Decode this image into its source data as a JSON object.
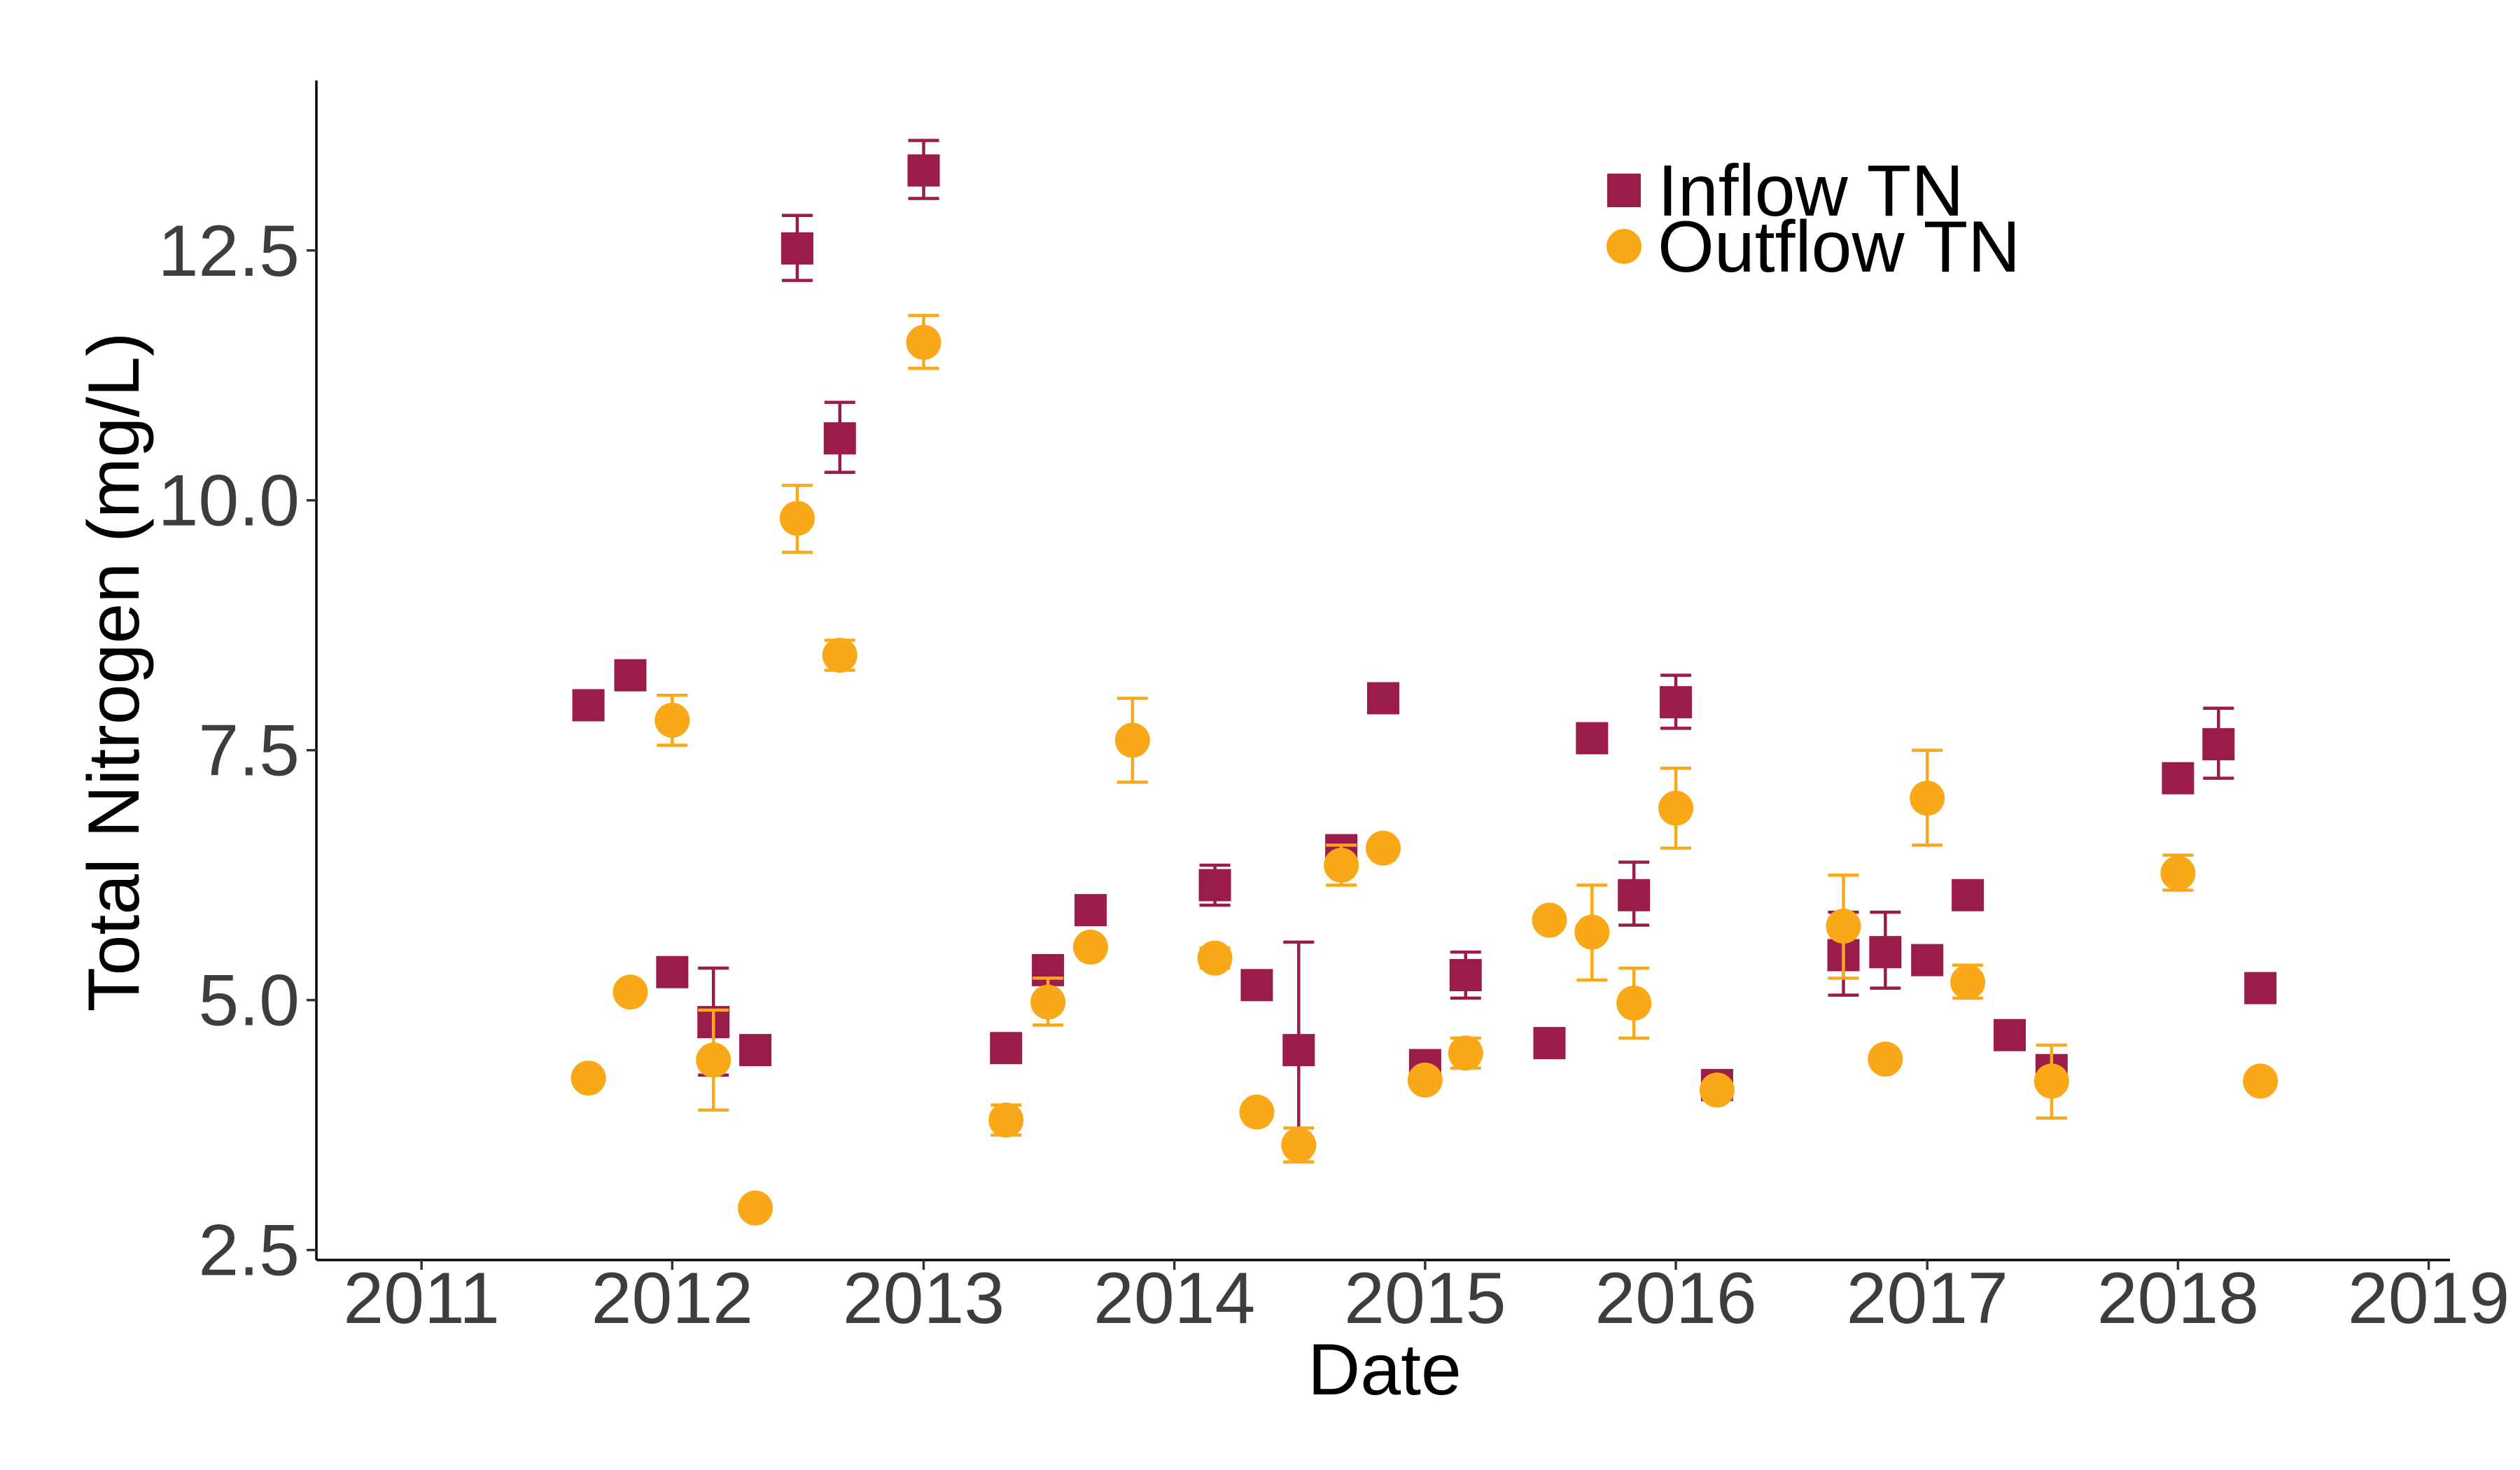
{
  "chart_data": {
    "type": "scatter",
    "title": "",
    "xlabel": "Date",
    "ylabel": "Total Nitrogen (mg/L)",
    "xlim": [
      "2010-08-01",
      "2019-02-01"
    ],
    "ylim": [
      2.4,
      14.2
    ],
    "x_ticks": [
      "2011",
      "2012",
      "2013",
      "2014",
      "2015",
      "2016",
      "2017",
      "2018",
      "2019"
    ],
    "y_ticks": [
      "2.5",
      "5.0",
      "7.5",
      "10.0",
      "12.5"
    ],
    "grid": false,
    "legend_position": "top-right",
    "error_bars": true,
    "series": [
      {
        "name": "Inflow TN",
        "marker": "square",
        "color": "#9b1b4b",
        "points": [
          {
            "x": "2011-09-01",
            "y": 7.95,
            "err": [
              7.95,
              7.95
            ]
          },
          {
            "x": "2011-11-01",
            "y": 8.25,
            "err": [
              8.25,
              8.25
            ]
          },
          {
            "x": "2012-01-01",
            "y": 5.28,
            "err": [
              5.28,
              5.28
            ]
          },
          {
            "x": "2012-03-01",
            "y": 4.78,
            "err": [
              4.25,
              5.32
            ]
          },
          {
            "x": "2012-05-01",
            "y": 4.5,
            "err": [
              4.5,
              4.5
            ]
          },
          {
            "x": "2012-07-01",
            "y": 12.52,
            "err": [
              12.2,
              12.85
            ]
          },
          {
            "x": "2012-09-01",
            "y": 10.62,
            "err": [
              10.28,
              10.98
            ]
          },
          {
            "x": "2013-01-01",
            "y": 13.3,
            "err": [
              13.02,
              13.6
            ]
          },
          {
            "x": "2013-05-01",
            "y": 4.52,
            "err": [
              4.52,
              4.52
            ]
          },
          {
            "x": "2013-07-01",
            "y": 5.3,
            "err": [
              5.2,
              5.4
            ]
          },
          {
            "x": "2013-09-01",
            "y": 5.9,
            "err": [
              5.9,
              5.9
            ]
          },
          {
            "x": "2014-03-01",
            "y": 6.15,
            "err": [
              5.95,
              6.35
            ]
          },
          {
            "x": "2014-05-01",
            "y": 5.15,
            "err": [
              5.15,
              5.15
            ]
          },
          {
            "x": "2014-07-01",
            "y": 4.5,
            "err": [
              3.5,
              5.58
            ]
          },
          {
            "x": "2014-09-01",
            "y": 6.5,
            "err": [
              6.5,
              6.5
            ]
          },
          {
            "x": "2014-11-01",
            "y": 8.02,
            "err": [
              8.02,
              8.02
            ]
          },
          {
            "x": "2015-01-01",
            "y": 4.35,
            "err": [
              4.35,
              4.35
            ]
          },
          {
            "x": "2015-03-01",
            "y": 5.25,
            "err": [
              5.02,
              5.48
            ]
          },
          {
            "x": "2015-07-01",
            "y": 4.57,
            "err": [
              4.57,
              4.57
            ]
          },
          {
            "x": "2015-09-01",
            "y": 7.62,
            "err": [
              7.62,
              7.62
            ]
          },
          {
            "x": "2015-11-01",
            "y": 6.05,
            "err": [
              5.75,
              6.38
            ]
          },
          {
            "x": "2016-01-01",
            "y": 7.98,
            "err": [
              7.72,
              8.25
            ]
          },
          {
            "x": "2016-03-01",
            "y": 4.15,
            "err": [
              4.15,
              4.15
            ]
          },
          {
            "x": "2016-09-01",
            "y": 5.45,
            "err": [
              5.05,
              5.88
            ]
          },
          {
            "x": "2016-11-01",
            "y": 5.48,
            "err": [
              5.12,
              5.88
            ]
          },
          {
            "x": "2017-01-01",
            "y": 5.4,
            "err": [
              5.4,
              5.4
            ]
          },
          {
            "x": "2017-03-01",
            "y": 6.05,
            "err": [
              6.05,
              6.05
            ]
          },
          {
            "x": "2017-05-01",
            "y": 4.65,
            "err": [
              4.65,
              4.65
            ]
          },
          {
            "x": "2017-07-01",
            "y": 4.3,
            "err": [
              4.3,
              4.3
            ]
          },
          {
            "x": "2018-01-01",
            "y": 7.22,
            "err": [
              7.22,
              7.22
            ]
          },
          {
            "x": "2018-03-01",
            "y": 7.56,
            "err": [
              7.22,
              7.92
            ]
          },
          {
            "x": "2018-05-01",
            "y": 5.12,
            "err": [
              5.12,
              5.12
            ]
          }
        ]
      },
      {
        "name": "Outflow TN",
        "marker": "circle",
        "color": "#f9a818",
        "points": [
          {
            "x": "2011-09-01",
            "y": 4.22,
            "err": [
              4.22,
              4.22
            ]
          },
          {
            "x": "2011-11-01",
            "y": 5.08,
            "err": [
              5.08,
              5.08
            ]
          },
          {
            "x": "2012-01-01",
            "y": 7.8,
            "err": [
              7.55,
              8.05
            ]
          },
          {
            "x": "2012-03-01",
            "y": 4.4,
            "err": [
              3.9,
              4.9
            ]
          },
          {
            "x": "2012-05-01",
            "y": 2.92,
            "err": [
              2.92,
              2.92
            ]
          },
          {
            "x": "2012-07-01",
            "y": 9.82,
            "err": [
              9.48,
              10.15
            ]
          },
          {
            "x": "2012-09-01",
            "y": 8.45,
            "err": [
              8.3,
              8.6
            ]
          },
          {
            "x": "2013-01-01",
            "y": 11.58,
            "err": [
              11.32,
              11.85
            ]
          },
          {
            "x": "2013-05-01",
            "y": 3.8,
            "err": [
              3.65,
              3.95
            ]
          },
          {
            "x": "2013-07-01",
            "y": 4.98,
            "err": [
              4.75,
              5.22
            ]
          },
          {
            "x": "2013-09-01",
            "y": 5.53,
            "err": [
              5.53,
              5.53
            ]
          },
          {
            "x": "2013-11-01",
            "y": 7.6,
            "err": [
              7.18,
              8.02
            ]
          },
          {
            "x": "2014-03-01",
            "y": 5.42,
            "err": [
              5.32,
              5.52
            ]
          },
          {
            "x": "2014-05-01",
            "y": 3.88,
            "err": [
              3.88,
              3.88
            ]
          },
          {
            "x": "2014-07-01",
            "y": 3.55,
            "err": [
              3.38,
              3.72
            ]
          },
          {
            "x": "2014-09-01",
            "y": 6.35,
            "err": [
              6.15,
              6.55
            ]
          },
          {
            "x": "2014-11-01",
            "y": 6.52,
            "err": [
              6.52,
              6.52
            ]
          },
          {
            "x": "2015-01-01",
            "y": 4.2,
            "err": [
              4.2,
              4.2
            ]
          },
          {
            "x": "2015-03-01",
            "y": 4.47,
            "err": [
              4.32,
              4.62
            ]
          },
          {
            "x": "2015-07-01",
            "y": 5.8,
            "err": [
              5.8,
              5.8
            ]
          },
          {
            "x": "2015-09-01",
            "y": 5.68,
            "err": [
              5.2,
              6.15
            ]
          },
          {
            "x": "2015-11-01",
            "y": 4.97,
            "err": [
              4.62,
              5.32
            ]
          },
          {
            "x": "2016-01-01",
            "y": 6.92,
            "err": [
              6.52,
              7.32
            ]
          },
          {
            "x": "2016-03-01",
            "y": 4.1,
            "err": [
              4.1,
              4.1
            ]
          },
          {
            "x": "2016-09-01",
            "y": 5.74,
            "err": [
              5.22,
              6.25
            ]
          },
          {
            "x": "2016-11-01",
            "y": 4.41,
            "err": [
              4.41,
              4.41
            ]
          },
          {
            "x": "2017-01-01",
            "y": 7.02,
            "err": [
              6.55,
              7.5
            ]
          },
          {
            "x": "2017-03-01",
            "y": 5.18,
            "err": [
              5.02,
              5.35
            ]
          },
          {
            "x": "2017-07-01",
            "y": 4.19,
            "err": [
              3.82,
              4.55
            ]
          },
          {
            "x": "2018-01-01",
            "y": 6.27,
            "err": [
              6.1,
              6.45
            ]
          },
          {
            "x": "2018-05-01",
            "y": 4.19,
            "err": [
              4.19,
              4.19
            ]
          }
        ]
      }
    ]
  }
}
